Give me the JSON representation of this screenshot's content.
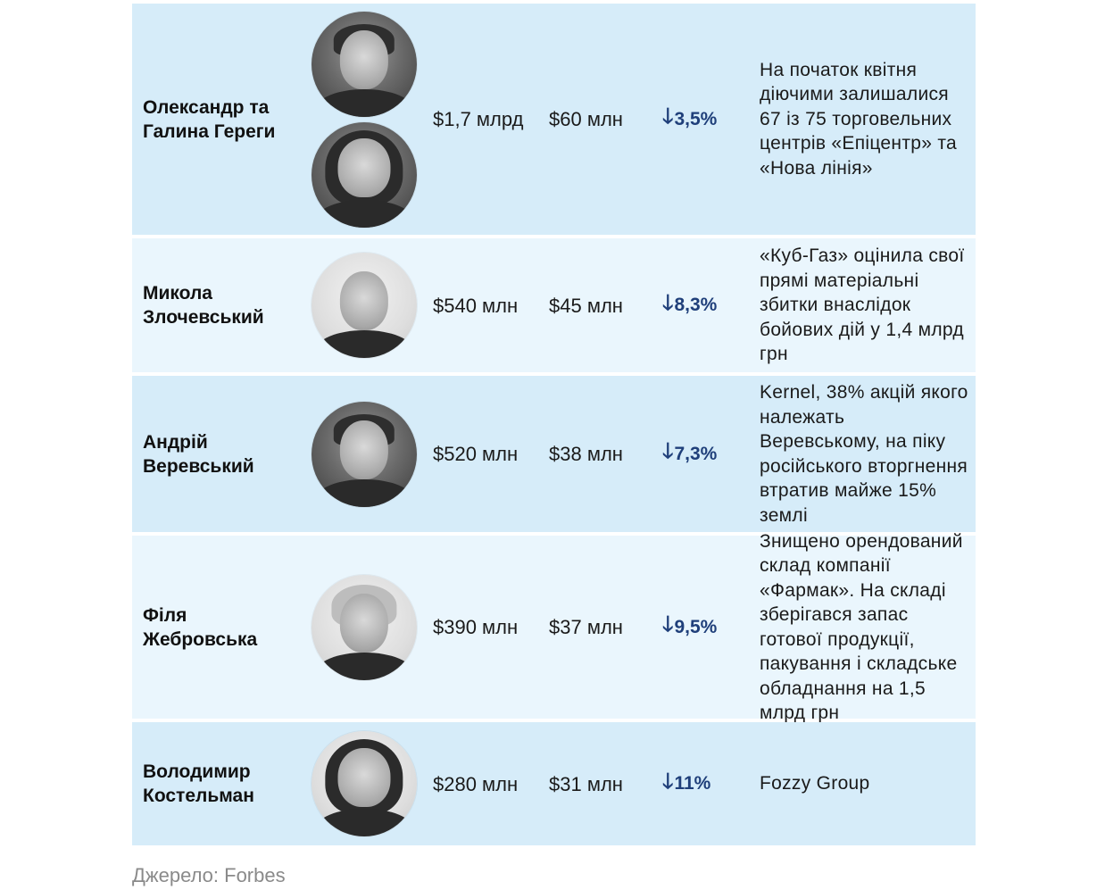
{
  "rows": [
    {
      "name": "Олександр та Галина Гереги",
      "worth": "$1,7 млрд",
      "loss": "$60 млн",
      "change": "3,5%",
      "note": "На початок квітня діючими залишалися 67 із 75 торговельних центрів «Епіцентр» та «Нова лінія»",
      "photos": [
        "person-photo",
        "person-photo"
      ]
    },
    {
      "name": "Микола Злочевський",
      "worth": "$540 млн",
      "loss": "$45 млн",
      "change": "8,3%",
      "note": "«Куб-Газ» оцінила свої прямі матеріальні збитки внаслідок бойових дій у 1,4 млрд грн",
      "photos": [
        "person-photo"
      ]
    },
    {
      "name": "Андрій Веревський",
      "worth": "$520 млн",
      "loss": "$38 млн",
      "change": "7,3%",
      "note": "Kernel, 38% акцій якого належать Веревському, на піку російського вторгнення втратив майже 15% землі",
      "photos": [
        "person-photo"
      ]
    },
    {
      "name": "Філя Жебровська",
      "worth": "$390 млн",
      "loss": "$37 млн",
      "change": "9,5%",
      "note": "Знищено орендований склад компанії «Фармак». На складі зберігався запас готової продукції, пакування і складське обладнання на 1,5 млрд грн",
      "photos": [
        "person-photo"
      ]
    },
    {
      "name": "Володимир Костельман",
      "worth": "$280 млн",
      "loss": "$31 млн",
      "change": "11%",
      "note": "Fozzy Group",
      "photos": [
        "person-photo"
      ]
    }
  ],
  "change_icon": "arrow-down-icon",
  "colors": {
    "row_dark": "#d6ecf9",
    "row_light": "#eaf6fd",
    "change_text": "#1f3f7a",
    "source_text": "#8a8a8a"
  },
  "source": "Джерело: Forbes"
}
